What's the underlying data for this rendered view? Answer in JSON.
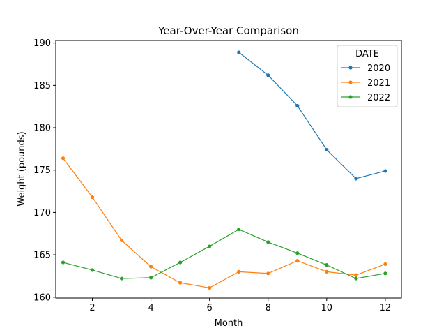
{
  "chart_data": {
    "type": "line",
    "title": "Year-Over-Year Comparison",
    "xlabel": "Month",
    "ylabel": "Weight (pounds)",
    "xlim": [
      0.75,
      12.55
    ],
    "ylim": [
      159.9,
      190.3
    ],
    "xticks": [
      2,
      4,
      6,
      8,
      10,
      12
    ],
    "yticks": [
      160,
      165,
      170,
      175,
      180,
      185,
      190
    ],
    "grid": false,
    "legend": {
      "title": "DATE",
      "placement": "top-right"
    },
    "series": [
      {
        "name": "2020",
        "color": "#1f77b4",
        "x": [
          7,
          8,
          9,
          10,
          11,
          12
        ],
        "y": [
          188.9,
          186.2,
          182.6,
          177.4,
          174.0,
          174.9
        ]
      },
      {
        "name": "2021",
        "color": "#ff7f0e",
        "x": [
          1,
          2,
          3,
          4,
          5,
          6,
          7,
          8,
          9,
          10,
          11,
          12
        ],
        "y": [
          176.4,
          171.8,
          166.7,
          163.6,
          161.7,
          161.1,
          163.0,
          162.8,
          164.3,
          163.0,
          162.6,
          163.9
        ]
      },
      {
        "name": "2022",
        "color": "#2ca02c",
        "x": [
          1,
          2,
          3,
          4,
          5,
          6,
          7,
          8,
          9,
          10,
          11,
          12
        ],
        "y": [
          164.1,
          163.2,
          162.2,
          162.3,
          164.1,
          166.0,
          168.0,
          166.5,
          165.2,
          163.8,
          162.2,
          162.8
        ]
      }
    ]
  }
}
